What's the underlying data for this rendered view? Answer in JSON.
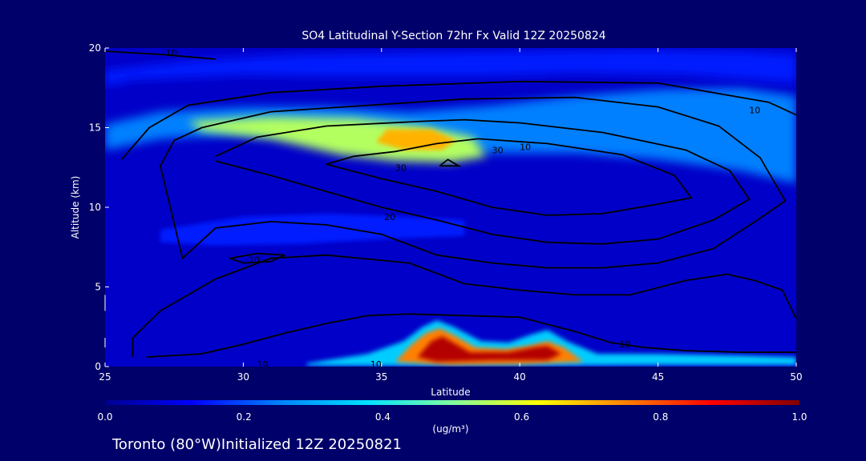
{
  "chart_data": {
    "type": "heatmap",
    "title": "SO4 Latitudinal Y-Section 72hr  Fx Valid 12Z 20250824",
    "xlabel": "Latitude",
    "ylabel": "Altitude (km)",
    "xlim": [
      25,
      50
    ],
    "ylim": [
      0,
      20
    ],
    "x_ticks": [
      25,
      30,
      35,
      40,
      45,
      50
    ],
    "y_ticks": [
      0,
      5,
      10,
      15,
      20
    ],
    "colorbar": {
      "ticks": [
        0.0,
        0.2,
        0.4,
        0.6,
        0.8,
        1.0
      ],
      "tick_labels": [
        "0.0",
        "0.2",
        "0.4",
        "0.6",
        "0.8",
        "1.0"
      ],
      "unit_label": "(ug/m³)",
      "stops": [
        "#000090",
        "#0000ff",
        "#0080ff",
        "#00e0ff",
        "#80ffa0",
        "#ffff00",
        "#ff8000",
        "#ff0000",
        "#800000"
      ]
    },
    "filled_regions": [
      {
        "name": "upper-layer",
        "value": 0.25,
        "points": [
          [
            25,
            15.2
          ],
          [
            27,
            16
          ],
          [
            30,
            16.3
          ],
          [
            33,
            16.3
          ],
          [
            36,
            16
          ],
          [
            39,
            16.4
          ],
          [
            42,
            17
          ],
          [
            45,
            17.4
          ],
          [
            48,
            17.5
          ],
          [
            50,
            17
          ],
          [
            50,
            11.5
          ],
          [
            48,
            12.3
          ],
          [
            45,
            13
          ],
          [
            42,
            13.4
          ],
          [
            39,
            13.4
          ],
          [
            36,
            13.8
          ],
          [
            33,
            14.4
          ],
          [
            30,
            14.6
          ],
          [
            27,
            14.3
          ],
          [
            25,
            13.6
          ]
        ]
      },
      {
        "name": "upper-band-top",
        "value": 0.15,
        "points": [
          [
            25,
            18.6
          ],
          [
            28,
            19.2
          ],
          [
            32,
            19.6
          ],
          [
            36,
            19.7
          ],
          [
            40,
            19.8
          ],
          [
            44,
            19.9
          ],
          [
            48,
            19.8
          ],
          [
            50,
            19.6
          ],
          [
            50,
            17.8
          ],
          [
            46,
            18.3
          ],
          [
            42,
            18.4
          ],
          [
            38,
            18.2
          ],
          [
            34,
            18.2
          ],
          [
            30,
            18.3
          ],
          [
            26,
            18
          ],
          [
            25,
            17.6
          ]
        ]
      },
      {
        "name": "upper-core",
        "value": 0.55,
        "points": [
          [
            28,
            15.4
          ],
          [
            31,
            15.7
          ],
          [
            34,
            15.6
          ],
          [
            36.5,
            15.1
          ],
          [
            38.3,
            14.4
          ],
          [
            38.8,
            13.2
          ],
          [
            37.5,
            12.8
          ],
          [
            35.5,
            12.9
          ],
          [
            33.5,
            13.3
          ],
          [
            31,
            14.3
          ],
          [
            28.5,
            14.8
          ]
        ]
      },
      {
        "name": "upper-peak",
        "value": 0.7,
        "points": [
          [
            35.2,
            14.9
          ],
          [
            36.8,
            14.9
          ],
          [
            37.7,
            14.2
          ],
          [
            37.2,
            13.6
          ],
          [
            35.8,
            13.6
          ],
          [
            34.8,
            14.1
          ]
        ]
      },
      {
        "name": "mid-layer",
        "value": 0.15,
        "points": [
          [
            27,
            8.6
          ],
          [
            30,
            9.4
          ],
          [
            33,
            9.6
          ],
          [
            36,
            9.4
          ],
          [
            38,
            9.2
          ],
          [
            38,
            8.2
          ],
          [
            35,
            8
          ],
          [
            32,
            7.7
          ],
          [
            29,
            7.6
          ],
          [
            27,
            7.8
          ]
        ]
      },
      {
        "name": "surface-plume",
        "value": 0.35,
        "points": [
          [
            32.3,
            0.2
          ],
          [
            34.5,
            0.8
          ],
          [
            35.8,
            1.6
          ],
          [
            36.5,
            2.5
          ],
          [
            37,
            2.9
          ],
          [
            37.6,
            2.5
          ],
          [
            38.6,
            1.6
          ],
          [
            39.6,
            1.5
          ],
          [
            40.4,
            2
          ],
          [
            41,
            2.3
          ],
          [
            41.7,
            1.6
          ],
          [
            42.8,
            0.8
          ],
          [
            45,
            0.8
          ],
          [
            48,
            0.7
          ],
          [
            50,
            0.6
          ],
          [
            50,
            0.1
          ],
          [
            45,
            0.1
          ],
          [
            40,
            0.05
          ],
          [
            35,
            0.05
          ],
          [
            32.3,
            0.05
          ]
        ]
      },
      {
        "name": "surface-core",
        "value": 0.75,
        "points": [
          [
            35.5,
            0.3
          ],
          [
            36.1,
            1.4
          ],
          [
            36.6,
            2.1
          ],
          [
            37.1,
            2.4
          ],
          [
            37.6,
            2
          ],
          [
            38.4,
            1.2
          ],
          [
            39.5,
            1.1
          ],
          [
            40.3,
            1.3
          ],
          [
            41,
            1.6
          ],
          [
            41.6,
            1.2
          ],
          [
            42.3,
            0.3
          ],
          [
            40,
            0.15
          ],
          [
            37.5,
            0.1
          ]
        ]
      },
      {
        "name": "surface-peak",
        "value": 0.95,
        "points": [
          [
            36.3,
            0.6
          ],
          [
            36.8,
            1.6
          ],
          [
            37.2,
            1.9
          ],
          [
            37.6,
            1.5
          ],
          [
            38.2,
            0.9
          ],
          [
            39.6,
            0.9
          ],
          [
            40.5,
            1.2
          ],
          [
            41,
            1.3
          ],
          [
            41.5,
            0.8
          ],
          [
            41,
            0.4
          ],
          [
            39,
            0.4
          ],
          [
            37,
            0.3
          ]
        ]
      }
    ],
    "contours": [
      {
        "level": "10",
        "label_at": [
          30.7,
          0.15
        ],
        "points": [
          [
            26,
            0.6
          ],
          [
            26,
            1.8
          ],
          [
            27,
            3.5
          ],
          [
            29,
            5.5
          ],
          [
            31,
            6.8
          ],
          [
            33,
            7
          ],
          [
            36,
            6.5
          ],
          [
            38,
            5.2
          ],
          [
            40,
            4.8
          ],
          [
            42,
            4.5
          ],
          [
            44,
            4.5
          ],
          [
            46,
            5.4
          ],
          [
            47.5,
            5.8
          ],
          [
            48.5,
            5.4
          ],
          [
            49.5,
            4.8
          ],
          [
            50,
            3
          ]
        ]
      },
      {
        "level": "10",
        "label_at": [
          34.8,
          0.15
        ],
        "points": [
          [
            26.5,
            0.6
          ],
          [
            28.5,
            0.8
          ],
          [
            30,
            1.4
          ],
          [
            31.5,
            2.1
          ],
          [
            33,
            2.7
          ],
          [
            34.5,
            3.2
          ],
          [
            36,
            3.3
          ],
          [
            38,
            3.2
          ],
          [
            40,
            3.1
          ],
          [
            42,
            2.2
          ],
          [
            43.3,
            1.5
          ],
          [
            44.5,
            1.2
          ],
          [
            46,
            1
          ],
          [
            48,
            0.9
          ],
          [
            50,
            0.9
          ]
        ]
      },
      {
        "level": "10",
        "label_at": [
          43.8,
          1.4
        ],
        "points": [
          [
            25.6,
            13
          ],
          [
            26.6,
            15
          ],
          [
            28,
            16.4
          ],
          [
            31,
            17.2
          ],
          [
            35,
            17.6
          ],
          [
            40,
            17.9
          ],
          [
            45,
            17.8
          ],
          [
            49,
            16.6
          ],
          [
            50,
            15.8
          ]
        ]
      },
      {
        "level": "10",
        "label_at": [
          48.5,
          16.1
        ],
        "points": []
      },
      {
        "level": "10",
        "label_at": [
          30.4,
          6.7
        ],
        "points": [
          [
            29.5,
            6.8
          ],
          [
            30.5,
            7.1
          ],
          [
            31.5,
            7
          ],
          [
            31,
            6.6
          ],
          [
            30,
            6.5
          ],
          [
            29.5,
            6.8
          ]
        ]
      },
      {
        "level": "10",
        "label_at": [
          27.4,
          19.7
        ],
        "points": [
          [
            25,
            19.8
          ],
          [
            27,
            19.6
          ],
          [
            29,
            19.3
          ]
        ]
      },
      {
        "level": "10",
        "label_at": [
          40.2,
          13.8
        ],
        "points": [
          [
            27,
            12.6
          ],
          [
            27.5,
            9
          ],
          [
            27.8,
            6.8
          ],
          [
            29,
            8.7
          ],
          [
            31,
            9.1
          ],
          [
            33,
            8.9
          ],
          [
            35,
            8.3
          ],
          [
            37,
            7
          ],
          [
            39,
            6.5
          ],
          [
            41,
            6.2
          ],
          [
            43,
            6.2
          ],
          [
            45,
            6.5
          ],
          [
            47,
            7.4
          ],
          [
            48.6,
            9.2
          ],
          [
            49.6,
            10.4
          ],
          [
            48.7,
            13.1
          ],
          [
            47.2,
            15.1
          ],
          [
            45,
            16.3
          ],
          [
            42,
            16.9
          ],
          [
            38,
            16.8
          ],
          [
            34.5,
            16.4
          ],
          [
            31,
            16
          ],
          [
            28.5,
            15
          ],
          [
            27.5,
            14.2
          ],
          [
            27,
            12.6
          ]
        ]
      },
      {
        "level": "20",
        "label_at": [
          35.3,
          9.4
        ],
        "points": [
          [
            29,
            12.9
          ],
          [
            31,
            12
          ],
          [
            33,
            11
          ],
          [
            35,
            10
          ],
          [
            37,
            9.2
          ],
          [
            39,
            8.3
          ],
          [
            41,
            7.8
          ],
          [
            43,
            7.7
          ],
          [
            45,
            8
          ],
          [
            47,
            9.2
          ],
          [
            48.3,
            10.5
          ],
          [
            47.6,
            12.3
          ],
          [
            46,
            13.6
          ],
          [
            43,
            14.7
          ],
          [
            40,
            15.3
          ],
          [
            38,
            15.5
          ],
          [
            36.5,
            15.4
          ],
          [
            33,
            15.1
          ],
          [
            30.5,
            14.4
          ],
          [
            29,
            13.2
          ]
        ]
      },
      {
        "level": "30",
        "label_at": [
          39.2,
          13.6
        ],
        "points": [
          [
            33,
            12.7
          ],
          [
            35,
            11.8
          ],
          [
            37,
            11
          ],
          [
            39,
            10
          ],
          [
            41,
            9.5
          ],
          [
            43,
            9.6
          ],
          [
            45,
            10.2
          ],
          [
            46.2,
            10.6
          ],
          [
            45.6,
            12
          ],
          [
            43.7,
            13.3
          ],
          [
            41,
            14
          ],
          [
            38.5,
            14.3
          ],
          [
            37,
            14
          ],
          [
            35.5,
            13.5
          ],
          [
            34,
            13.2
          ],
          [
            33,
            12.7
          ]
        ]
      },
      {
        "level": "30",
        "label_at": [
          35.7,
          12.5
        ],
        "points": [
          [
            37.1,
            12.6
          ],
          [
            37.8,
            12.6
          ],
          [
            37.4,
            13
          ],
          [
            37.1,
            12.6
          ]
        ]
      }
    ]
  },
  "footer": "Toronto (80°W)Initialized 12Z 20250821"
}
